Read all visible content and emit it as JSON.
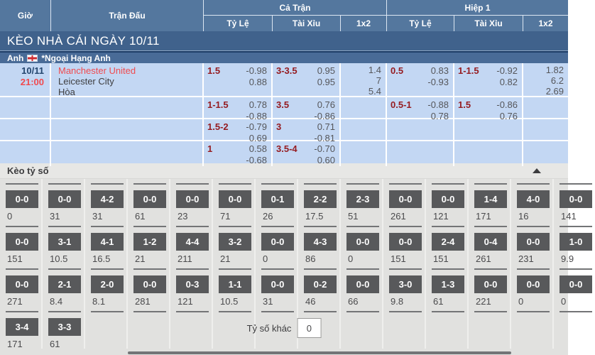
{
  "header": {
    "col_gio": "Giờ",
    "col_tran_dau": "Trận Đấu",
    "group_full": "Cả Trận",
    "group_h1": "Hiệp 1",
    "sub_ty_le": "Tỷ Lệ",
    "sub_tai_xiu": "Tài Xỉu",
    "sub_1x2": "1x2"
  },
  "section_title": "KÈO NHÀ CÁI NGÀY 10/11",
  "league": {
    "country": "Anh",
    "flag_icon": "england-flag",
    "name": "*Ngoại Hạng Anh"
  },
  "match": {
    "date": "10/11",
    "time": "21:00",
    "home": "Manchester United",
    "away": "Leicester City",
    "draw": "Hòa"
  },
  "odds_rows": [
    {
      "ft_hdp": {
        "line": "1.5",
        "top": "-0.98",
        "bottom": "0.88"
      },
      "ft_ou": {
        "line": "3-3.5",
        "top": "0.95",
        "bottom": "0.95"
      },
      "ft_1x2": [
        "1.4",
        "7",
        "5.4"
      ],
      "h1_hdp": {
        "line": "0.5",
        "top": "0.83",
        "bottom": "-0.93"
      },
      "h1_ou": {
        "line": "1-1.5",
        "top": "-0.92",
        "bottom": "0.82"
      },
      "h1_1x2": [
        "1.82",
        "6.2",
        "2.69"
      ]
    },
    {
      "ft_hdp": {
        "line": "1-1.5",
        "top": "0.78",
        "bottom": "-0.88"
      },
      "ft_ou": {
        "line": "3.5",
        "top": "0.76",
        "bottom": "-0.86"
      },
      "h1_hdp": {
        "line": "0.5-1",
        "top": "-0.88",
        "bottom": "0.78"
      },
      "h1_ou": {
        "line": "1.5",
        "top": "-0.86",
        "bottom": "0.76"
      }
    },
    {
      "ft_hdp": {
        "line": "1.5-2",
        "top": "-0.79",
        "bottom": "0.69"
      },
      "ft_ou": {
        "line": "3",
        "top": "0.71",
        "bottom": "-0.81"
      }
    },
    {
      "ft_hdp": {
        "line": "1",
        "top": "0.58",
        "bottom": "-0.68"
      },
      "ft_ou": {
        "line": "3.5-4",
        "top": "-0.70",
        "bottom": "0.60"
      }
    }
  ],
  "score_section": {
    "title": "Kèo tỷ số",
    "collapse_icon": "chevron-up",
    "other_label": "Tỷ số khác",
    "other_value": "0",
    "rows": [
      [
        {
          "score": "0-0",
          "odds": "0"
        },
        {
          "score": "0-0",
          "odds": "31"
        },
        {
          "score": "4-2",
          "odds": "31"
        },
        {
          "score": "0-0",
          "odds": "61"
        },
        {
          "score": "0-0",
          "odds": "23"
        },
        {
          "score": "0-0",
          "odds": "71"
        },
        {
          "score": "0-1",
          "odds": "26"
        },
        {
          "score": "2-2",
          "odds": "17.5"
        },
        {
          "score": "2-3",
          "odds": "51"
        },
        {
          "score": "0-0",
          "odds": "261"
        },
        {
          "score": "0-0",
          "odds": "121"
        },
        {
          "score": "1-4",
          "odds": "171"
        },
        {
          "score": "4-0",
          "odds": "16"
        },
        {
          "score": "0-0",
          "odds": "141"
        }
      ],
      [
        {
          "score": "0-0",
          "odds": "151"
        },
        {
          "score": "3-1",
          "odds": "10.5"
        },
        {
          "score": "4-1",
          "odds": "16.5"
        },
        {
          "score": "1-2",
          "odds": "21"
        },
        {
          "score": "4-4",
          "odds": "211"
        },
        {
          "score": "3-2",
          "odds": "21"
        },
        {
          "score": "0-0",
          "odds": "0"
        },
        {
          "score": "4-3",
          "odds": "86"
        },
        {
          "score": "0-0",
          "odds": "0"
        },
        {
          "score": "0-0",
          "odds": "151"
        },
        {
          "score": "2-4",
          "odds": "151"
        },
        {
          "score": "0-4",
          "odds": "261"
        },
        {
          "score": "0-0",
          "odds": "231"
        },
        {
          "score": "1-0",
          "odds": "9.9"
        }
      ],
      [
        {
          "score": "0-0",
          "odds": "271"
        },
        {
          "score": "2-1",
          "odds": "8.4"
        },
        {
          "score": "2-0",
          "odds": "8.1"
        },
        {
          "score": "0-0",
          "odds": "281"
        },
        {
          "score": "0-3",
          "odds": "121"
        },
        {
          "score": "1-1",
          "odds": "10.5"
        },
        {
          "score": "0-0",
          "odds": "31"
        },
        {
          "score": "0-2",
          "odds": "46"
        },
        {
          "score": "0-0",
          "odds": "66"
        },
        {
          "score": "3-0",
          "odds": "9.8"
        },
        {
          "score": "1-3",
          "odds": "61"
        },
        {
          "score": "0-0",
          "odds": "221"
        },
        {
          "score": "0-0",
          "odds": "0"
        },
        {
          "score": "0-0",
          "odds": "0"
        }
      ],
      [
        {
          "score": "3-4",
          "odds": "171"
        },
        {
          "score": "3-3",
          "odds": "61"
        }
      ]
    ]
  },
  "colors": {
    "header_bg": "#54779e",
    "band_bg": "#40628c",
    "row_bg": "#c3d7f3",
    "handicap_red": "#951c21",
    "team_red": "#f04a4e",
    "chip_bg": "#58595b",
    "section_bg": "#e1e1df"
  }
}
